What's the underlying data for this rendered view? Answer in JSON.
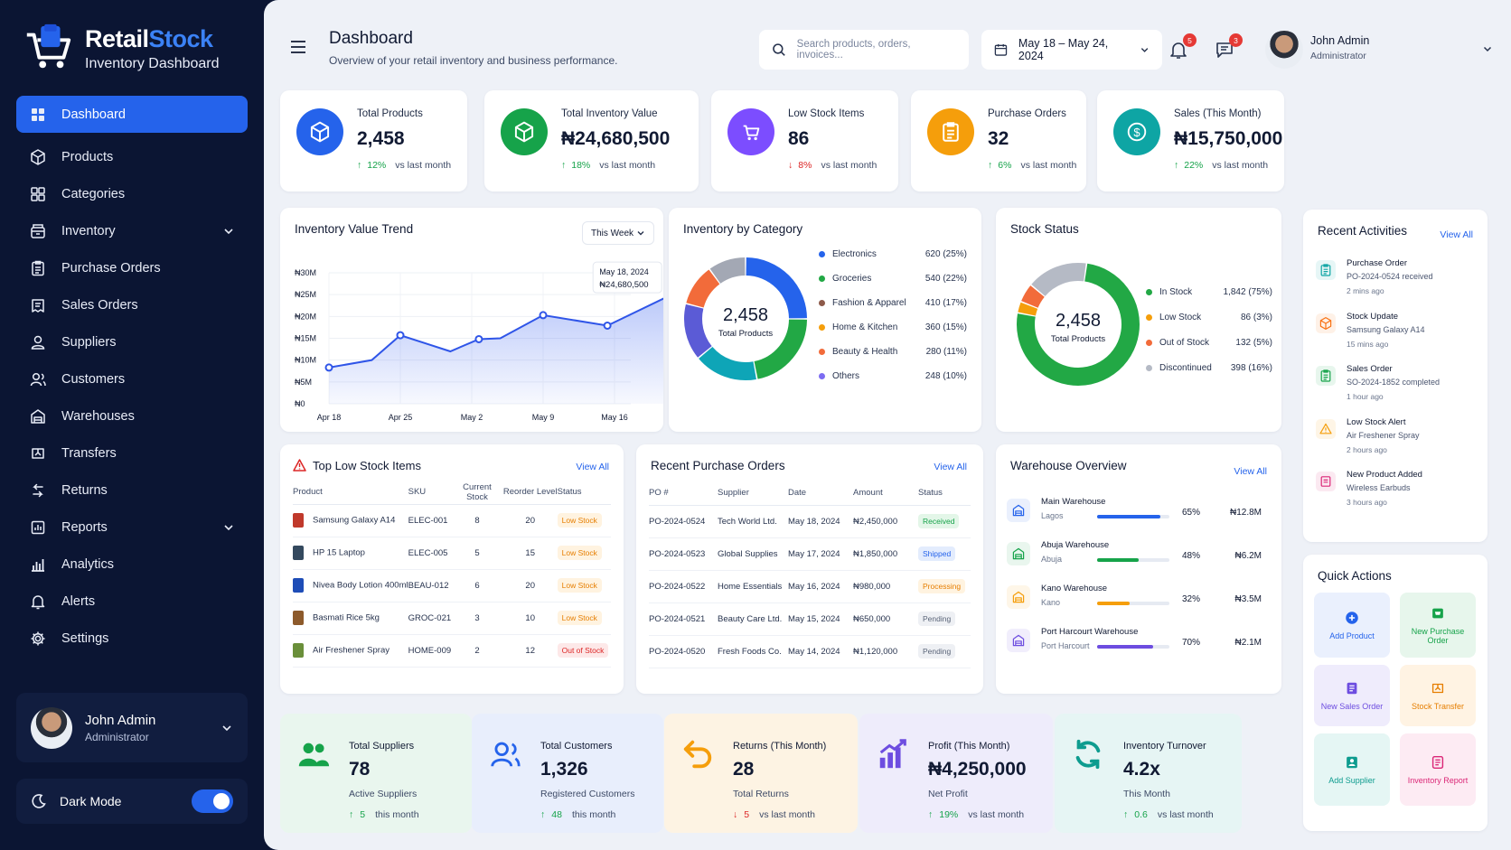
{
  "brand": {
    "name_a": "Retail",
    "name_b": "Stock",
    "subtitle": "Inventory Dashboard"
  },
  "nav": [
    {
      "label": "Dashboard",
      "icon": "grid-icon"
    },
    {
      "label": "Products",
      "icon": "box-icon"
    },
    {
      "label": "Categories",
      "icon": "categories-icon"
    },
    {
      "label": "Inventory",
      "icon": "inventory-icon"
    },
    {
      "label": "Purchase Orders",
      "icon": "clipboard-icon"
    },
    {
      "label": "Sales Orders",
      "icon": "sales-icon"
    },
    {
      "label": "Suppliers",
      "icon": "suppliers-icon"
    },
    {
      "label": "Customers",
      "icon": "customers-icon"
    },
    {
      "label": "Warehouses",
      "icon": "warehouse-icon"
    },
    {
      "label": "Transfers",
      "icon": "transfer-icon"
    },
    {
      "label": "Returns",
      "icon": "returns-icon"
    },
    {
      "label": "Reports",
      "icon": "reports-icon"
    },
    {
      "label": "Analytics",
      "icon": "analytics-icon"
    },
    {
      "label": "Alerts",
      "icon": "bell-icon"
    },
    {
      "label": "Settings",
      "icon": "gear-icon"
    }
  ],
  "sidebar_user": {
    "name": "John Admin",
    "role": "Administrator"
  },
  "dark_mode": {
    "label": "Dark Mode",
    "enabled": true
  },
  "header": {
    "title": "Dashboard",
    "subtitle": "Overview of your retail inventory and business performance.",
    "search_placeholder": "Search products, orders, invoices...",
    "date_range": "May 18 – May 24, 2024",
    "notifications": "5",
    "messages": "3",
    "user_name": "John Admin",
    "user_role": "Administrator"
  },
  "stats": [
    {
      "label": "Total Products",
      "value": "2,458",
      "trend": "12%",
      "dir": "up",
      "note": "vs last month",
      "color": "#2563eb"
    },
    {
      "label": "Total Inventory Value",
      "value": "₦24,680,500",
      "trend": "18%",
      "dir": "up",
      "note": "vs last month",
      "color": "#16a34a"
    },
    {
      "label": "Low Stock Items",
      "value": "86",
      "trend": "8%",
      "dir": "down",
      "note": "vs last month",
      "color": "#7c4dff"
    },
    {
      "label": "Purchase Orders",
      "value": "32",
      "trend": "6%",
      "dir": "up",
      "note": "vs last month",
      "color": "#f59e0b"
    },
    {
      "label": "Sales (This Month)",
      "value": "₦15,750,000",
      "trend": "22%",
      "dir": "up",
      "note": "vs last month",
      "color": "#0ea5a4"
    }
  ],
  "trend_card": {
    "title": "Inventory Value Trend",
    "period": "This Week",
    "tooltip_date": "May 18, 2024",
    "tooltip_value": "₦24,680,500"
  },
  "chart_data": {
    "type": "line",
    "title": "Inventory Value Trend",
    "x_ticks": [
      "Apr 18",
      "Apr 25",
      "May 2",
      "May 9",
      "May 16"
    ],
    "y_ticks": [
      "₦0",
      "₦5M",
      "₦10M",
      "₦15M",
      "₦20M",
      "₦25M",
      "₦30M"
    ],
    "ylim": [
      0,
      30
    ],
    "points": [
      {
        "x": 0,
        "y": 8.3
      },
      {
        "x": 0.6,
        "y": 10.0
      },
      {
        "x": 1.0,
        "y": 15.7
      },
      {
        "x": 1.7,
        "y": 12.0
      },
      {
        "x": 2.1,
        "y": 14.8
      },
      {
        "x": 2.4,
        "y": 15.0
      },
      {
        "x": 3.0,
        "y": 20.3
      },
      {
        "x": 3.9,
        "y": 17.9
      },
      {
        "x": 4.8,
        "y": 25.0
      }
    ],
    "highlight": {
      "x": 4.8,
      "y": 25.0
    }
  },
  "category_card": {
    "title": "Inventory by Category",
    "center_value": "2,458",
    "center_label": "Total Products",
    "items": [
      {
        "name": "Electronics",
        "value": "620 (25%)",
        "pct": 25,
        "color": "#2563eb"
      },
      {
        "name": "Groceries",
        "value": "540 (22%)",
        "pct": 22,
        "color": "#22a845"
      },
      {
        "name": "Fashion & Apparel",
        "value": "410 (17%)",
        "pct": 17,
        "color": "#0ea5b7"
      },
      {
        "name": "Home & Kitchen",
        "value": "360 (15%)",
        "pct": 15,
        "color": "#5b5bd6"
      },
      {
        "name": "Beauty & Health",
        "value": "280 (11%)",
        "pct": 11,
        "color": "#f26b3a"
      },
      {
        "name": "Others",
        "value": "248 (10%)",
        "pct": 10,
        "color": "#a3a8b4"
      }
    ],
    "legend_colors": [
      "#2563eb",
      "#22a845",
      "#8d5a4a",
      "#f59e0b",
      "#f26b3a",
      "#7c6cf2"
    ]
  },
  "stock_card": {
    "title": "Stock Status",
    "center_value": "2,458",
    "center_label": "Total Products",
    "items": [
      {
        "name": "In Stock",
        "value": "1,842 (75%)",
        "pct": 75,
        "color": "#22a845"
      },
      {
        "name": "Low Stock",
        "value": "86 (3%)",
        "pct": 3,
        "color": "#f59e0b"
      },
      {
        "name": "Out of Stock",
        "value": "132 (5%)",
        "pct": 5,
        "color": "#f26b3a"
      },
      {
        "name": "Discontinued",
        "value": "398 (16%)",
        "pct": 16,
        "color": "#b5bac5"
      }
    ]
  },
  "activities": {
    "title": "Recent Activities",
    "view_all": "View All",
    "items": [
      {
        "title": "Purchase Order",
        "desc": "PO-2024-0524 received",
        "time": "2 mins ago",
        "color": "#0ea5a4",
        "icon": "clipboard-icon"
      },
      {
        "title": "Stock Update",
        "desc": "Samsung Galaxy A14",
        "time": "15 mins ago",
        "color": "#f97316",
        "icon": "box-icon"
      },
      {
        "title": "Sales Order",
        "desc": "SO-2024-1852 completed",
        "time": "1 hour ago",
        "color": "#16a34a",
        "icon": "clipboard-icon"
      },
      {
        "title": "Low Stock Alert",
        "desc": "Air Freshener Spray",
        "time": "2 hours ago",
        "color": "#f59e0b",
        "icon": "warning-icon"
      },
      {
        "title": "New Product Added",
        "desc": "Wireless Earbuds",
        "time": "3 hours ago",
        "color": "#db2777",
        "icon": "tag-icon"
      }
    ]
  },
  "quick_actions": {
    "title": "Quick Actions",
    "items": [
      {
        "label": "Add Product",
        "color": "#2563eb",
        "bg": "#eaf0fd",
        "icon": "plus-icon"
      },
      {
        "label": "New Purchase Order",
        "color": "#16a34a",
        "bg": "#e7f6ec",
        "icon": "cart-icon"
      },
      {
        "label": "New Sales Order",
        "color": "#6d4de0",
        "bg": "#efecfc",
        "icon": "receipt-icon"
      },
      {
        "label": "Stock Transfer",
        "color": "#e67e00",
        "bg": "#fff3e3",
        "icon": "transfer-icon"
      },
      {
        "label": "Add Supplier",
        "color": "#0e9c8f",
        "bg": "#e5f6f4",
        "icon": "supplier-icon"
      },
      {
        "label": "Inventory Report",
        "color": "#db2777",
        "bg": "#fdebf3",
        "icon": "report-icon"
      }
    ]
  },
  "low_stock": {
    "title": "Top Low Stock Items",
    "view_all": "View All",
    "headers": [
      "Product",
      "SKU",
      "Current Stock",
      "Reorder Level",
      "Status"
    ],
    "rows": [
      {
        "product": "Samsung Galaxy A14",
        "sku": "ELEC-001",
        "stock": "8",
        "reorder": "20",
        "status": "Low Stock",
        "kind": "low",
        "thumb": "#c0392b"
      },
      {
        "product": "HP 15 Laptop",
        "sku": "ELEC-005",
        "stock": "5",
        "reorder": "15",
        "status": "Low Stock",
        "kind": "low",
        "thumb": "#34495e"
      },
      {
        "product": "Nivea Body Lotion 400ml",
        "sku": "BEAU-012",
        "stock": "6",
        "reorder": "20",
        "status": "Low Stock",
        "kind": "low",
        "thumb": "#1e4db7"
      },
      {
        "product": "Basmati Rice 5kg",
        "sku": "GROC-021",
        "stock": "3",
        "reorder": "10",
        "status": "Low Stock",
        "kind": "low",
        "thumb": "#8d5a2b"
      },
      {
        "product": "Air Freshener Spray",
        "sku": "HOME-009",
        "stock": "2",
        "reorder": "12",
        "status": "Out of Stock",
        "kind": "out",
        "thumb": "#6a8f3a"
      }
    ]
  },
  "purchase_orders": {
    "title": "Recent Purchase Orders",
    "view_all": "View All",
    "headers": [
      "PO #",
      "Supplier",
      "Date",
      "Amount",
      "Status"
    ],
    "rows": [
      {
        "po": "PO-2024-0524",
        "supplier": "Tech World Ltd.",
        "date": "May 18, 2024",
        "amount": "₦2,450,000",
        "status": "Received",
        "kind": "received"
      },
      {
        "po": "PO-2024-0523",
        "supplier": "Global Supplies",
        "date": "May 17, 2024",
        "amount": "₦1,850,000",
        "status": "Shipped",
        "kind": "shipped"
      },
      {
        "po": "PO-2024-0522",
        "supplier": "Home Essentials",
        "date": "May 16, 2024",
        "amount": "₦980,000",
        "status": "Processing",
        "kind": "processing"
      },
      {
        "po": "PO-2024-0521",
        "supplier": "Beauty Care Ltd.",
        "date": "May 15, 2024",
        "amount": "₦650,000",
        "status": "Pending",
        "kind": "pending"
      },
      {
        "po": "PO-2024-0520",
        "supplier": "Fresh Foods Co.",
        "date": "May 14, 2024",
        "amount": "₦1,120,000",
        "status": "Pending",
        "kind": "pending"
      }
    ]
  },
  "warehouses": {
    "title": "Warehouse Overview",
    "view_all": "View All",
    "rows": [
      {
        "name": "Main Warehouse",
        "city": "Lagos",
        "pct": "65%",
        "fill": 0.88,
        "amount": "₦12.8M",
        "color": "#2563eb"
      },
      {
        "name": "Abuja Warehouse",
        "city": "Abuja",
        "pct": "48%",
        "fill": 0.58,
        "amount": "₦6.2M",
        "color": "#16a34a"
      },
      {
        "name": "Kano Warehouse",
        "city": "Kano",
        "pct": "32%",
        "fill": 0.45,
        "amount": "₦3.5M",
        "color": "#f59e0b"
      },
      {
        "name": "Port Harcourt Warehouse",
        "city": "Port Harcourt",
        "pct": "70%",
        "fill": 0.78,
        "amount": "₦2.1M",
        "color": "#6d4de0"
      }
    ]
  },
  "bottom": [
    {
      "label": "Total Suppliers",
      "value": "78",
      "sub": "Active Suppliers",
      "trend": "5",
      "dir": "up",
      "note": "this month",
      "color": "#16a34a",
      "bg": "#e9f6ee",
      "icon": "users-icon"
    },
    {
      "label": "Total Customers",
      "value": "1,326",
      "sub": "Registered Customers",
      "trend": "48",
      "dir": "up",
      "note": "this month",
      "color": "#2563eb",
      "bg": "#e8eefc",
      "icon": "customers-icon"
    },
    {
      "label": "Returns (This Month)",
      "value": "28",
      "sub": "Total Returns",
      "trend": "5",
      "dir": "down",
      "note": "vs last month",
      "color": "#f59e0b",
      "bg": "#fdf3e3",
      "icon": "return-arrow-icon"
    },
    {
      "label": "Profit (This Month)",
      "value": "₦4,250,000",
      "sub": "Net Profit",
      "trend": "19%",
      "dir": "up",
      "note": "vs last month",
      "color": "#6d4de0",
      "bg": "#eeecfb",
      "icon": "bar-chart-icon"
    },
    {
      "label": "Inventory Turnover",
      "value": "4.2x",
      "sub": "This Month",
      "trend": "0.6",
      "dir": "up",
      "note": "vs last month",
      "color": "#0e9c8f",
      "bg": "#e6f5f4",
      "icon": "refresh-icon"
    }
  ]
}
